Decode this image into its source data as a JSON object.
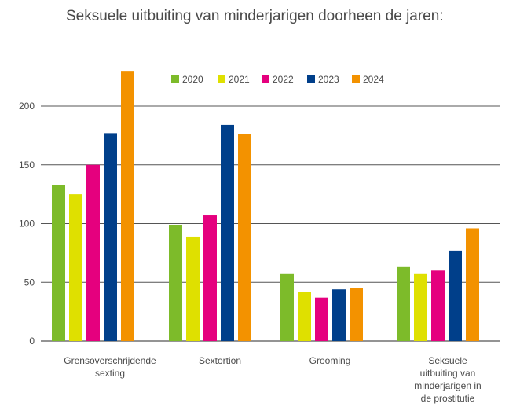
{
  "chart_data": {
    "type": "bar",
    "title": "Seksuele uitbuiting van minderjarigen doorheen de jaren:",
    "categories": [
      [
        "Grensoverschrijdende",
        "sexting"
      ],
      [
        "Sextortion"
      ],
      [
        "Grooming"
      ],
      [
        "Seksuele",
        "uitbuiting van",
        "minderjarigen in",
        "de prostitutie"
      ]
    ],
    "series": [
      {
        "name": "2020",
        "color": "#7dbb2a",
        "values": [
          133,
          99,
          57,
          63
        ]
      },
      {
        "name": "2021",
        "color": "#dfe000",
        "values": [
          125,
          89,
          42,
          57
        ]
      },
      {
        "name": "2022",
        "color": "#e5007e",
        "values": [
          150,
          107,
          37,
          60
        ]
      },
      {
        "name": "2023",
        "color": "#003f8a",
        "values": [
          177,
          184,
          44,
          77
        ]
      },
      {
        "name": "2024",
        "color": "#f39200",
        "values": [
          230,
          176,
          45,
          96
        ]
      }
    ],
    "yticks": [
      0,
      50,
      100,
      150,
      200
    ],
    "ylim": [
      0,
      240
    ],
    "grid": true,
    "legend": "top-center"
  }
}
